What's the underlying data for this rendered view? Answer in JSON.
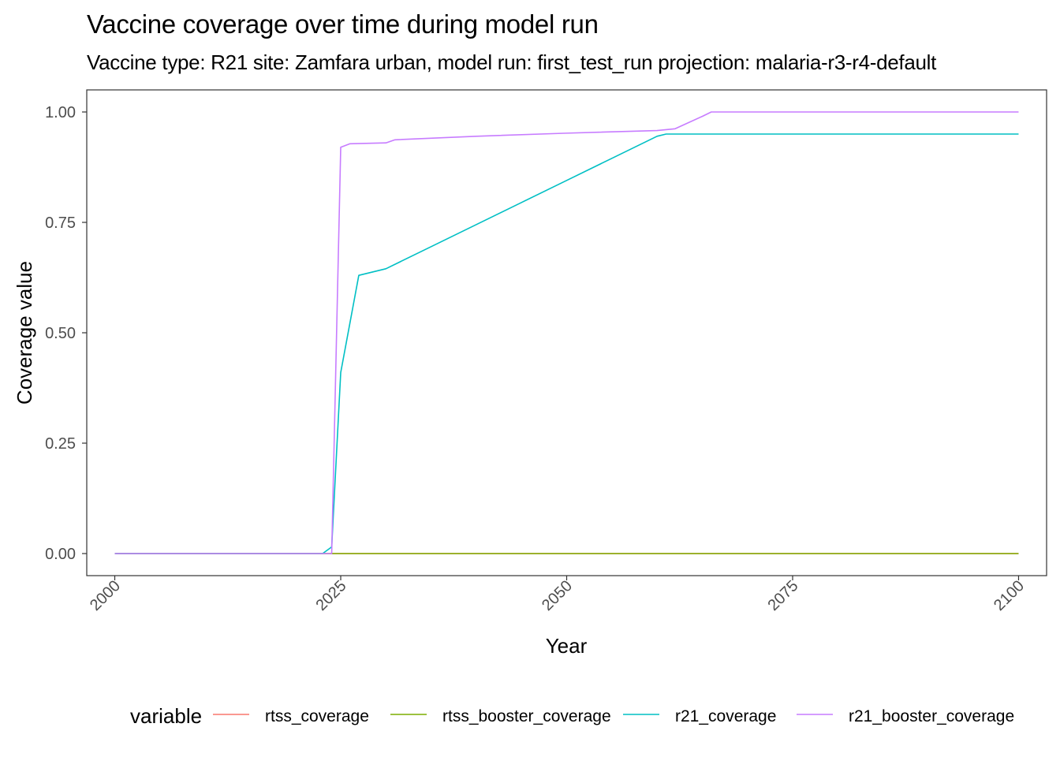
{
  "chart_data": {
    "type": "line",
    "title": "Vaccine coverage over time during model run",
    "subtitle": "Vaccine type: R21 site: Zamfara urban, model run: first_test_run projection: malaria-r3-r4-default",
    "xlabel": "Year",
    "ylabel": "Coverage value",
    "xlim": [
      1996.9,
      2103.1
    ],
    "ylim": [
      -0.05,
      1.05
    ],
    "x_ticks": [
      2000,
      2025,
      2050,
      2075,
      2100
    ],
    "x_tick_labels": [
      "2000",
      "2025",
      "2050",
      "2075",
      "2100"
    ],
    "y_ticks": [
      0,
      0.25,
      0.5,
      0.75,
      1.0
    ],
    "y_tick_labels": [
      "0.00",
      "0.25",
      "0.50",
      "0.75",
      "1.00"
    ],
    "grid": false,
    "legend": {
      "title": "variable",
      "position": "bottom"
    },
    "series": [
      {
        "name": "rtss_coverage",
        "color": "#F8766D",
        "points": [
          [
            2000,
            0
          ],
          [
            2100,
            0
          ]
        ]
      },
      {
        "name": "rtss_booster_coverage",
        "color": "#7CAE00",
        "points": [
          [
            2000,
            0
          ],
          [
            2100,
            0
          ]
        ]
      },
      {
        "name": "r21_coverage",
        "color": "#00BFC4",
        "points": [
          [
            2000,
            0
          ],
          [
            2023,
            0
          ],
          [
            2024,
            0.015
          ],
          [
            2025,
            0.41
          ],
          [
            2026,
            0.52
          ],
          [
            2027,
            0.63
          ],
          [
            2030,
            0.645
          ],
          [
            2035,
            0.695
          ],
          [
            2040,
            0.745
          ],
          [
            2045,
            0.795
          ],
          [
            2050,
            0.845
          ],
          [
            2055,
            0.895
          ],
          [
            2060,
            0.945
          ],
          [
            2061,
            0.95
          ],
          [
            2065,
            0.95
          ],
          [
            2100,
            0.95
          ]
        ]
      },
      {
        "name": "r21_booster_coverage",
        "color": "#C77CFF",
        "points": [
          [
            2000,
            0
          ],
          [
            2023,
            0
          ],
          [
            2024,
            0.0
          ],
          [
            2025,
            0.92
          ],
          [
            2026,
            0.928
          ],
          [
            2030,
            0.93
          ],
          [
            2031,
            0.937
          ],
          [
            2040,
            0.945
          ],
          [
            2050,
            0.952
          ],
          [
            2060,
            0.958
          ],
          [
            2062,
            0.962
          ],
          [
            2065,
            0.99
          ],
          [
            2066,
            1.0
          ],
          [
            2070,
            1.0
          ],
          [
            2100,
            1.0
          ]
        ]
      }
    ]
  }
}
